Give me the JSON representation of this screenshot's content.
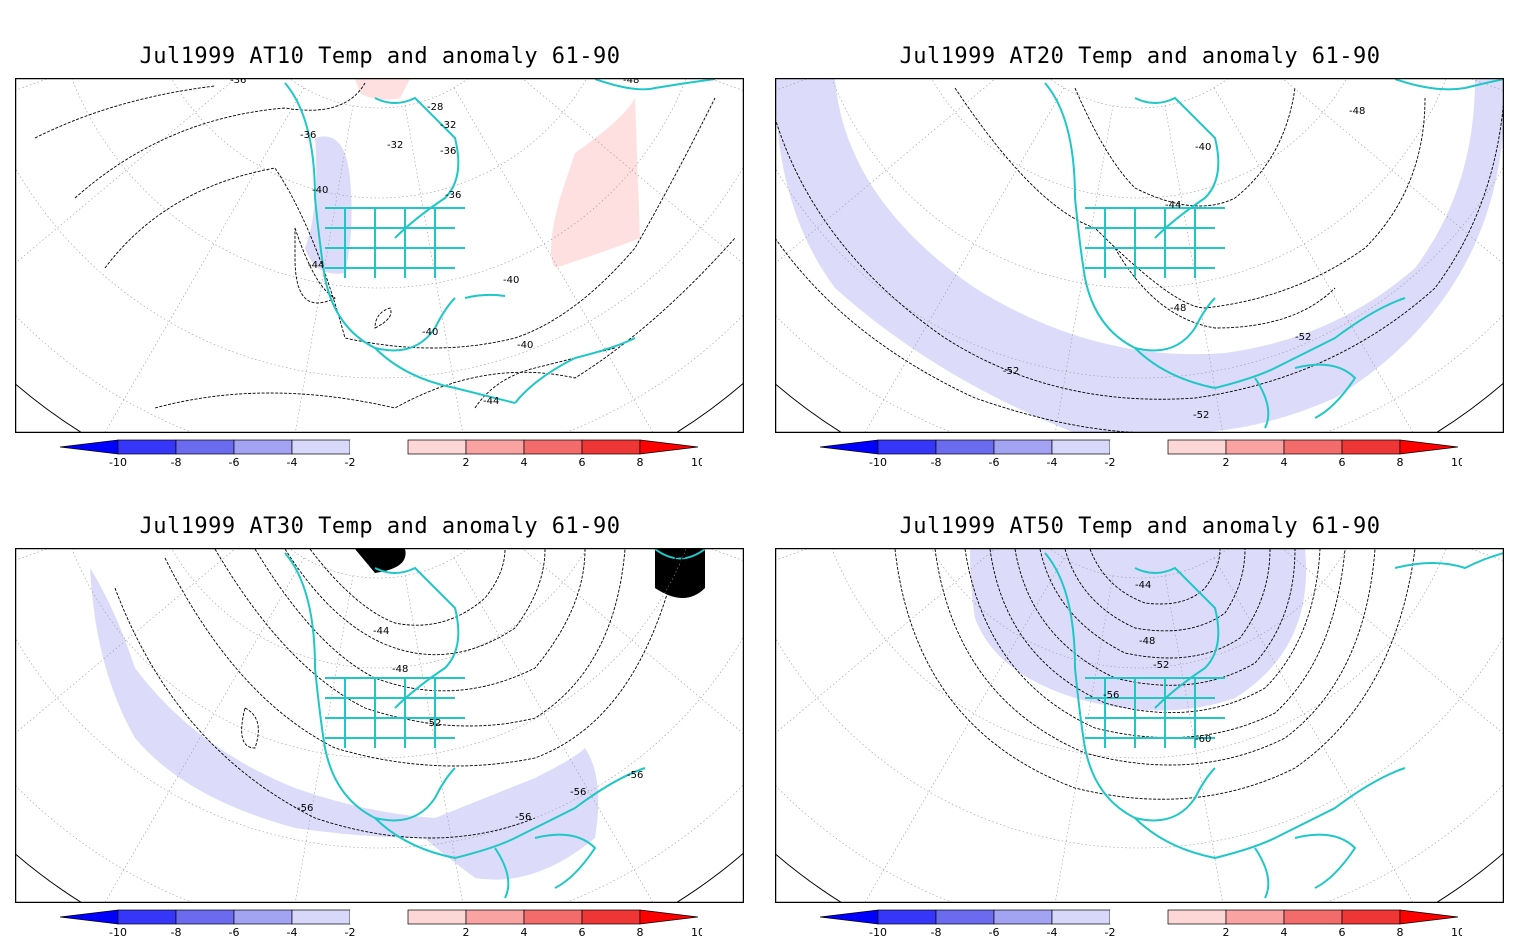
{
  "panels": [
    {
      "title": "Jul1999 AT10 Temp and anomaly 61-90",
      "contour_labels": [
        "-36",
        "-36",
        "-28",
        "-32",
        "-32",
        "-36",
        "-36",
        "-40",
        "-44",
        "-40",
        "-40",
        "-40",
        "-44",
        "-48"
      ],
      "anomaly_regions": [
        {
          "sign": "positive",
          "color": "#fde0df"
        },
        {
          "sign": "positive",
          "color": "#fde0df"
        },
        {
          "sign": "negative",
          "color": "#dcdcfa"
        }
      ]
    },
    {
      "title": "Jul1999 AT20 Temp and anomaly 61-90",
      "contour_labels": [
        "-48",
        "-40",
        "-44",
        "-48",
        "-52",
        "-52",
        "-52"
      ],
      "anomaly_regions": [
        {
          "sign": "negative",
          "color": "#dcdcfa"
        }
      ]
    },
    {
      "title": "Jul1999 AT30 Temp and anomaly 61-90",
      "contour_labels": [
        "-56",
        "-44",
        "-48",
        "-52",
        "-56",
        "-56",
        "-56",
        "-56"
      ],
      "anomaly_regions": [
        {
          "sign": "negative",
          "color": "#dcdcfa"
        }
      ]
    },
    {
      "title": "Jul1999 AT50 Temp and anomaly 61-90",
      "contour_labels": [
        "-44",
        "-48",
        "-52",
        "-56",
        "-60"
      ],
      "anomaly_regions": [
        {
          "sign": "negative",
          "color": "#dcdcfa"
        }
      ]
    }
  ],
  "colorbar": {
    "tick_labels": [
      "-10",
      "-8",
      "-6",
      "-4",
      "-2",
      "2",
      "4",
      "6",
      "8",
      "10"
    ],
    "colors": [
      "#0000ff",
      "#3636f8",
      "#6b6bf0",
      "#a3a3f3",
      "#d8d8fa",
      "#ffffff",
      "#fdd6d6",
      "#f9a3a3",
      "#f46b6b",
      "#ef3636",
      "#ff0000"
    ]
  },
  "map_colors": {
    "coastline": "#1fc7c7",
    "contour": "#000000",
    "graticule": "#9a9a9a",
    "frame": "#000000"
  }
}
